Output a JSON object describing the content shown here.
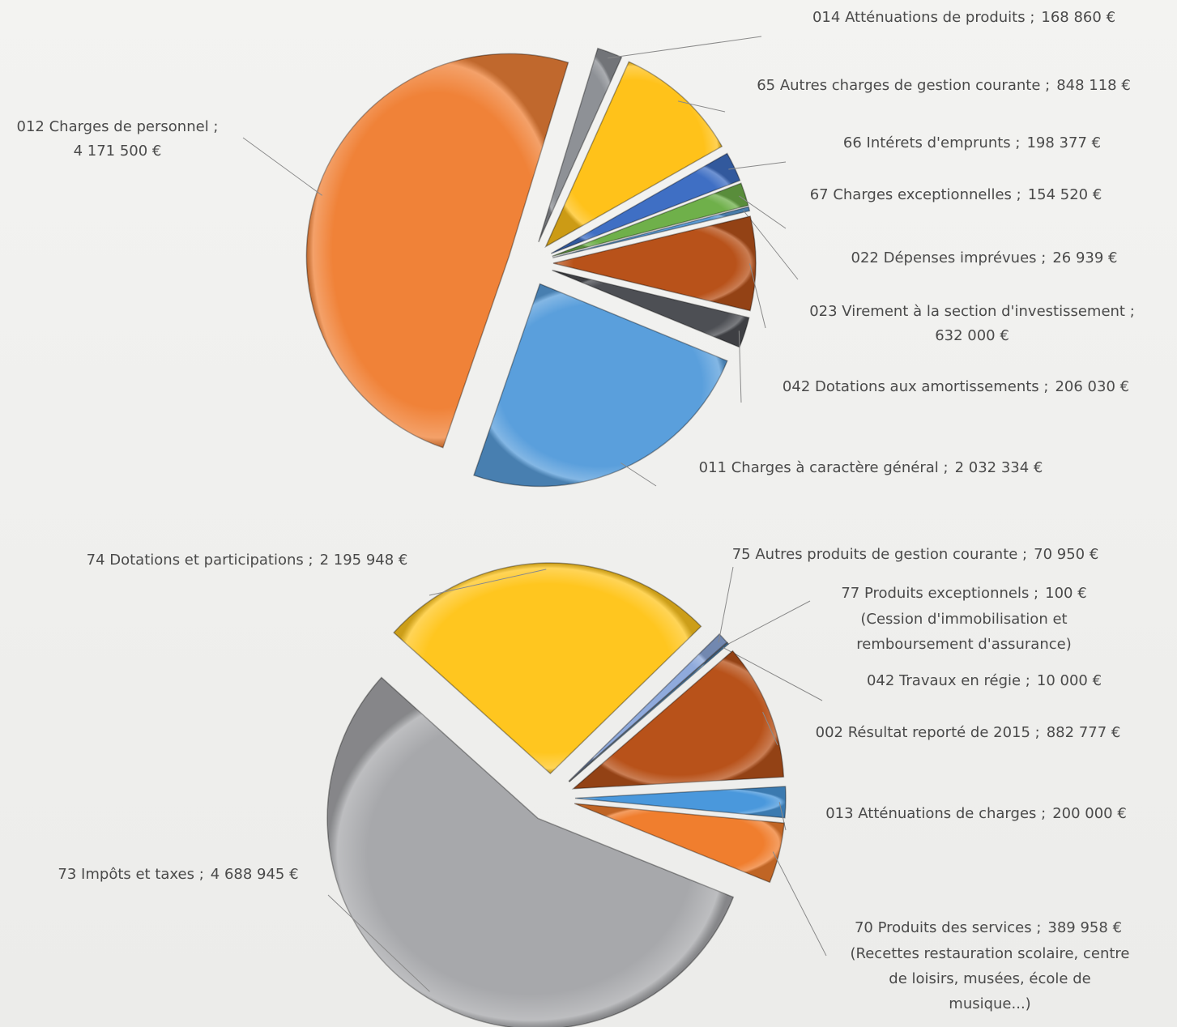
{
  "chart_data": [
    {
      "type": "pie",
      "categories": [
        "014 Atténuations de produits ;",
        "65 Autres charges de gestion courante ;",
        "66 Intérets d'emprunts ;",
        "67 Charges exceptionnelles ;",
        "022 Dépenses imprévues ;",
        "023 Virement à la section d'investissement ;",
        "042 Dotations aux amortissements ;",
        "011 Charges à caractère général ;",
        "012 Charges de personnel ;"
      ],
      "values": [
        168860,
        848118,
        198377,
        154520,
        26939,
        632000,
        206030,
        2032334,
        4171500
      ],
      "value_labels": [
        "168 860 €",
        "848 118 €",
        "198 377 €",
        "154 520 €",
        "26 939 €",
        "632 000 €",
        "206 030 €",
        "2 032 334 €",
        "4 171 500 €"
      ],
      "colors": [
        "#8e9196",
        "#ffc21a",
        "#3f6fc4",
        "#6fb04a",
        "#5b9bd5",
        "#b8521a",
        "#4d4f54",
        "#5a9fdc",
        "#f08238"
      ]
    },
    {
      "type": "pie",
      "categories": [
        "74 Dotations et participations ;",
        "75 Autres produits de gestion courante ;",
        "77 Produits exceptionnels ;",
        "042 Travaux en régie ;",
        "002 Résultat reporté de 2015 ;",
        "013 Atténuations de charges ;",
        "70 Produits des services ;",
        "73 Impôts et taxes ;"
      ],
      "values": [
        2195948,
        70950,
        100,
        10000,
        882777,
        200000,
        389958,
        4688945
      ],
      "value_labels": [
        "2 195 948 €",
        "70 950 €",
        "100 €",
        "10 000 €",
        "882 777 €",
        "200 000 €",
        "389 958 €",
        "4 688 945 €"
      ],
      "colors": [
        "#ffc61f",
        "#8faadc",
        "#3f6fc4",
        "#5b9bd5",
        "#b8521a",
        "#4a98dc",
        "#f07e2e",
        "#a7a8ab"
      ],
      "annotations": [
        [
          "(Cession d'immobilisation et",
          "remboursement d'assurance)"
        ],
        [
          "(Recettes restauration scolaire, centre",
          "de loisirs, musées, école de",
          "musique...)"
        ]
      ]
    }
  ]
}
